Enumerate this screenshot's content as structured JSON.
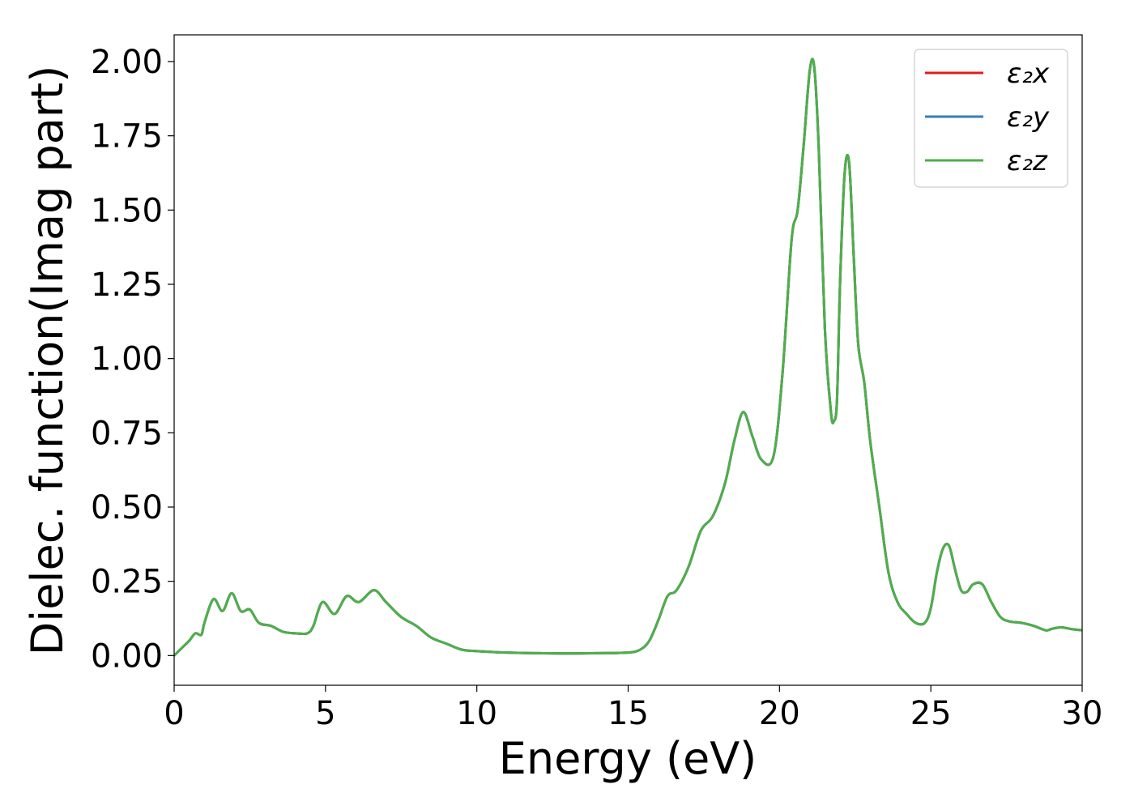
{
  "chart_data": {
    "type": "line",
    "xlabel": "Energy (eV)",
    "ylabel": "Dielec. function(Imag part)",
    "xlim": [
      0,
      30
    ],
    "ylim": [
      -0.1,
      2.09
    ],
    "xticks": [
      0,
      5,
      10,
      15,
      20,
      25,
      30
    ],
    "xtick_labels": [
      "0",
      "5",
      "10",
      "15",
      "20",
      "25",
      "30"
    ],
    "yticks": [
      0,
      0.25,
      0.5,
      0.75,
      1.0,
      1.25,
      1.5,
      1.75,
      2.0
    ],
    "ytick_labels": [
      "0.00",
      "0.25",
      "0.50",
      "0.75",
      "1.00",
      "1.25",
      "1.50",
      "1.75",
      "2.00"
    ],
    "grid": false,
    "legend": "top-right",
    "x": [
      0,
      0.3,
      0.5,
      0.7,
      0.9,
      1.0,
      1.3,
      1.6,
      1.9,
      2.2,
      2.5,
      2.8,
      3.2,
      3.6,
      4.0,
      4.4,
      4.6,
      4.9,
      5.3,
      5.7,
      6.1,
      6.6,
      7.0,
      7.5,
      8.0,
      8.5,
      9.0,
      9.5,
      10,
      11,
      12,
      13,
      14,
      15,
      15.4,
      15.7,
      16.0,
      16.3,
      16.6,
      17.0,
      17.4,
      17.8,
      18.2,
      18.5,
      18.8,
      19.1,
      19.4,
      19.8,
      20.1,
      20.4,
      20.6,
      20.8,
      21.0,
      21.15,
      21.3,
      21.5,
      21.7,
      21.8,
      21.9,
      22.0,
      22.15,
      22.3,
      22.45,
      22.6,
      22.8,
      23.0,
      23.3,
      23.6,
      23.9,
      24.2,
      24.5,
      24.8,
      25.0,
      25.2,
      25.4,
      25.6,
      25.8,
      26.0,
      26.2,
      26.4,
      26.7,
      27.0,
      27.3,
      27.6,
      28.0,
      28.4,
      28.8,
      29.0,
      29.3,
      29.6,
      30
    ],
    "series": [
      {
        "name": "ε₂x",
        "color": "#e41a1c",
        "values": [
          0.0,
          0.03,
          0.05,
          0.075,
          0.07,
          0.11,
          0.19,
          0.15,
          0.21,
          0.15,
          0.155,
          0.11,
          0.1,
          0.08,
          0.075,
          0.075,
          0.1,
          0.18,
          0.14,
          0.2,
          0.18,
          0.22,
          0.18,
          0.13,
          0.1,
          0.06,
          0.04,
          0.02,
          0.015,
          0.01,
          0.008,
          0.007,
          0.008,
          0.01,
          0.02,
          0.05,
          0.12,
          0.2,
          0.22,
          0.3,
          0.42,
          0.47,
          0.58,
          0.72,
          0.82,
          0.74,
          0.66,
          0.67,
          0.95,
          1.4,
          1.5,
          1.72,
          1.97,
          1.98,
          1.7,
          1.1,
          0.82,
          0.79,
          0.86,
          1.25,
          1.62,
          1.66,
          1.35,
          1.05,
          0.92,
          0.72,
          0.5,
          0.28,
          0.18,
          0.14,
          0.11,
          0.11,
          0.16,
          0.28,
          0.36,
          0.37,
          0.29,
          0.22,
          0.215,
          0.24,
          0.24,
          0.18,
          0.13,
          0.115,
          0.11,
          0.1,
          0.085,
          0.09,
          0.095,
          0.09,
          0.085
        ]
      },
      {
        "name": "ε₂y",
        "color": "#377eb8",
        "values": [
          0.0,
          0.03,
          0.05,
          0.075,
          0.07,
          0.11,
          0.19,
          0.15,
          0.21,
          0.15,
          0.155,
          0.11,
          0.1,
          0.08,
          0.075,
          0.075,
          0.1,
          0.18,
          0.14,
          0.2,
          0.18,
          0.22,
          0.18,
          0.13,
          0.1,
          0.06,
          0.04,
          0.02,
          0.015,
          0.01,
          0.008,
          0.007,
          0.008,
          0.01,
          0.02,
          0.05,
          0.12,
          0.2,
          0.22,
          0.3,
          0.42,
          0.47,
          0.58,
          0.72,
          0.82,
          0.74,
          0.66,
          0.67,
          0.95,
          1.4,
          1.5,
          1.72,
          1.97,
          1.98,
          1.7,
          1.1,
          0.82,
          0.79,
          0.86,
          1.25,
          1.62,
          1.66,
          1.35,
          1.05,
          0.92,
          0.72,
          0.5,
          0.28,
          0.18,
          0.14,
          0.11,
          0.11,
          0.16,
          0.28,
          0.36,
          0.37,
          0.29,
          0.22,
          0.215,
          0.24,
          0.24,
          0.18,
          0.13,
          0.115,
          0.11,
          0.1,
          0.085,
          0.09,
          0.095,
          0.09,
          0.085
        ]
      },
      {
        "name": "ε₂z",
        "color": "#4daf4a",
        "values": [
          0.0,
          0.03,
          0.05,
          0.075,
          0.07,
          0.11,
          0.19,
          0.15,
          0.21,
          0.15,
          0.155,
          0.11,
          0.1,
          0.08,
          0.075,
          0.075,
          0.1,
          0.18,
          0.14,
          0.2,
          0.18,
          0.22,
          0.18,
          0.13,
          0.1,
          0.06,
          0.04,
          0.02,
          0.015,
          0.01,
          0.008,
          0.007,
          0.008,
          0.01,
          0.02,
          0.05,
          0.12,
          0.2,
          0.22,
          0.3,
          0.42,
          0.47,
          0.58,
          0.72,
          0.82,
          0.74,
          0.66,
          0.67,
          0.95,
          1.4,
          1.5,
          1.72,
          1.97,
          1.98,
          1.7,
          1.1,
          0.82,
          0.79,
          0.86,
          1.25,
          1.62,
          1.66,
          1.35,
          1.05,
          0.92,
          0.72,
          0.5,
          0.28,
          0.18,
          0.14,
          0.11,
          0.11,
          0.16,
          0.28,
          0.36,
          0.37,
          0.29,
          0.22,
          0.215,
          0.24,
          0.24,
          0.18,
          0.13,
          0.115,
          0.11,
          0.1,
          0.085,
          0.09,
          0.095,
          0.09,
          0.085
        ]
      }
    ]
  }
}
